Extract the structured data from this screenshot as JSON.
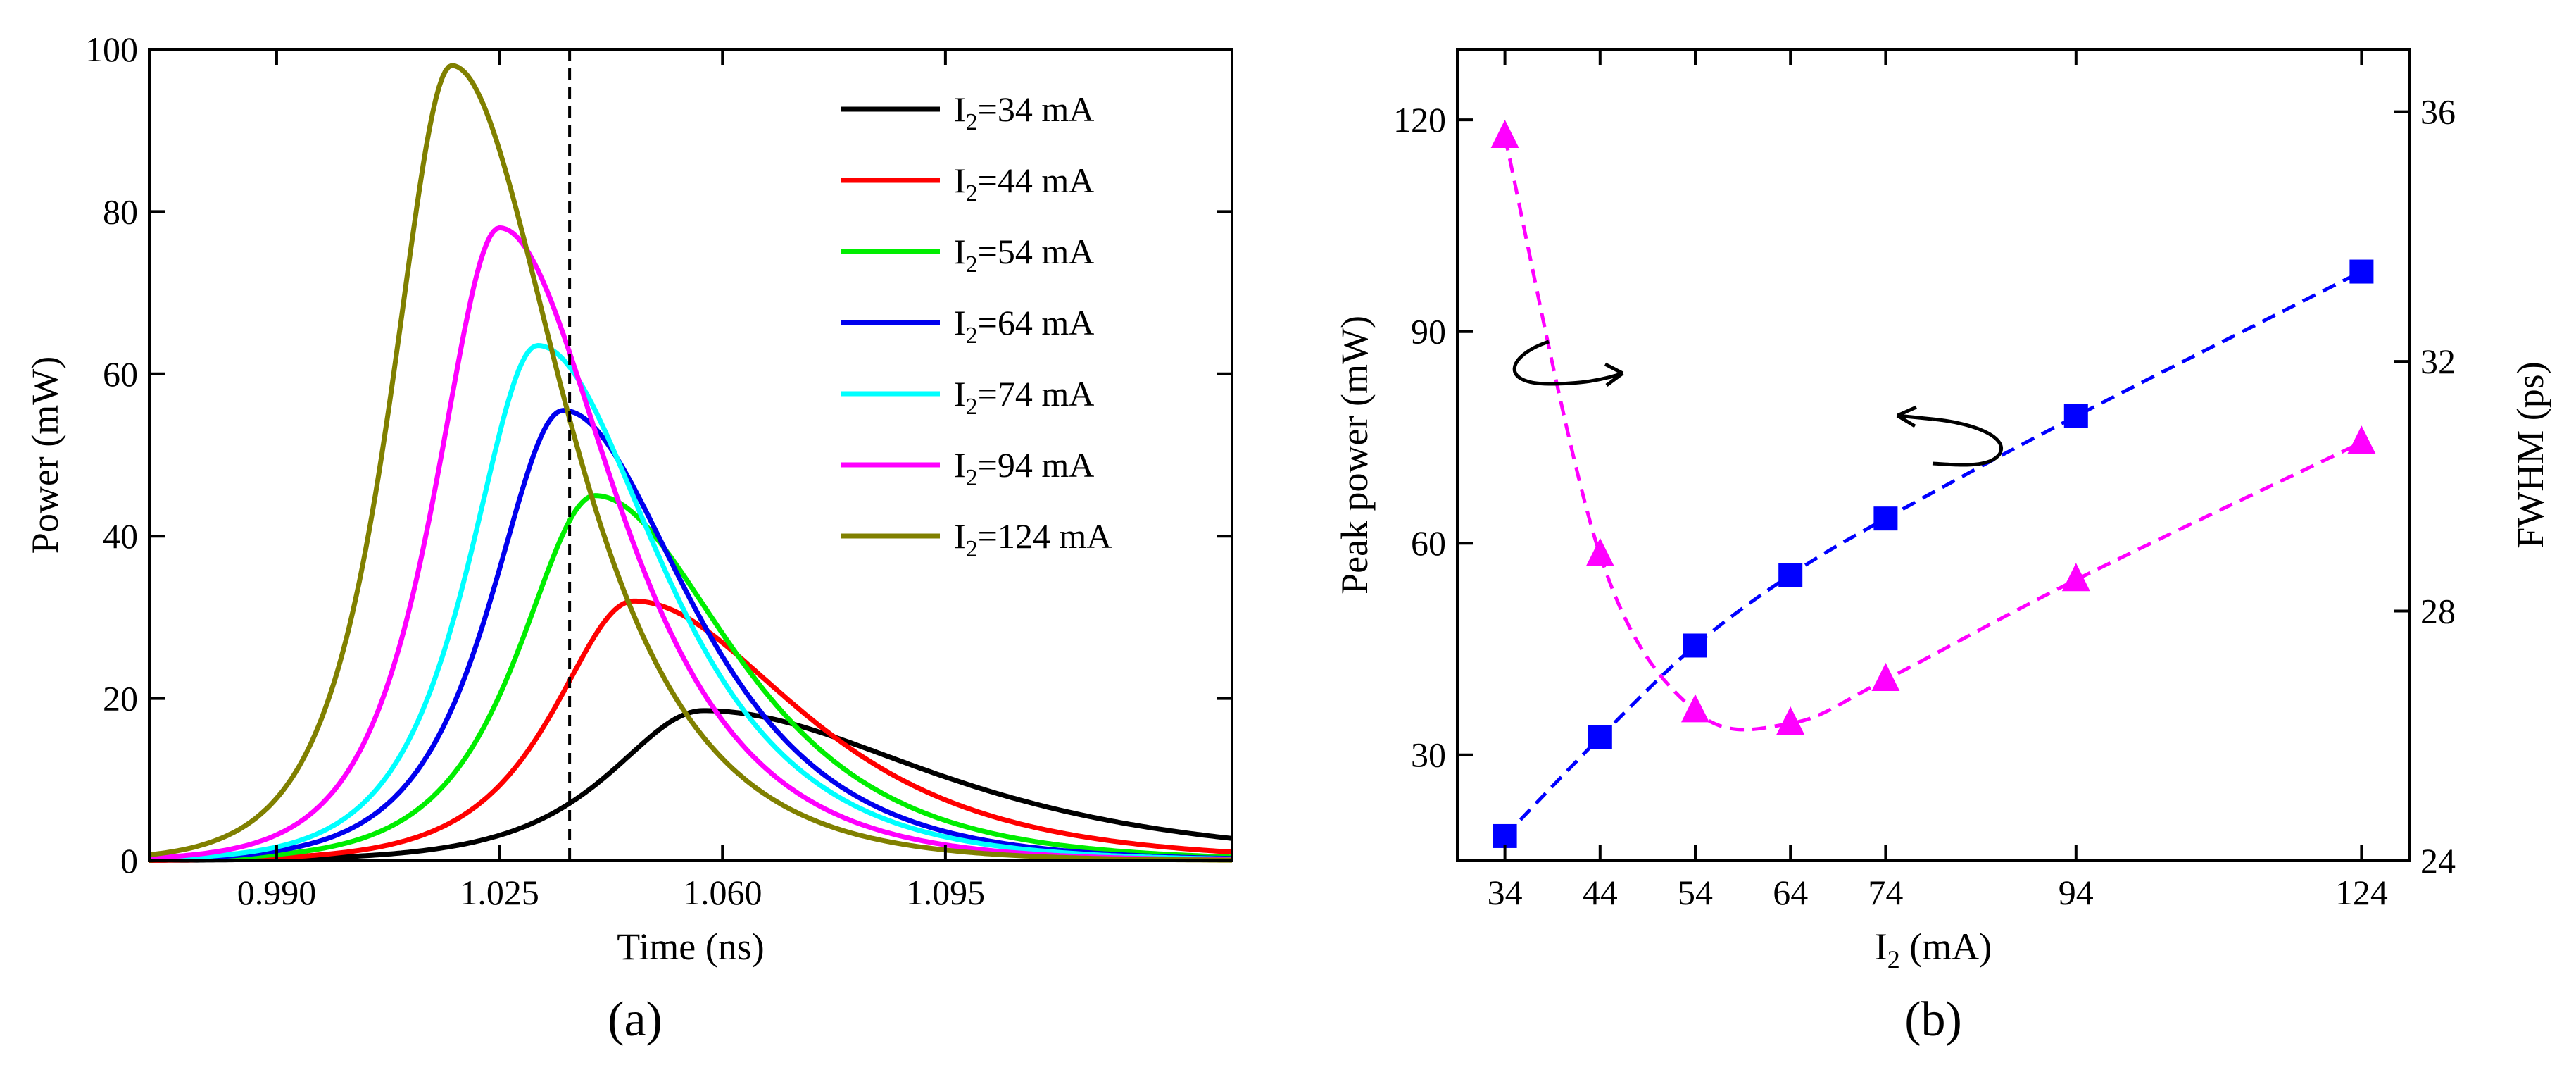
{
  "chart_data": [
    {
      "id": "a",
      "type": "line",
      "panel_label": "(a)",
      "xlabel": "Time (ns)",
      "ylabel": "Power (mW)",
      "xlim": [
        0.97,
        1.14
      ],
      "ylim": [
        0,
        100
      ],
      "xticks": [
        0.99,
        1.025,
        1.06,
        1.095
      ],
      "xtick_labels": [
        "0.990",
        "1.025",
        "1.060",
        "1.095"
      ],
      "yticks": [
        0,
        20,
        40,
        60,
        80,
        100
      ],
      "ytick_labels": [
        "0",
        "20",
        "40",
        "60",
        "80",
        "100"
      ],
      "vline_x": 1.036,
      "legend_position": "top-right",
      "series": [
        {
          "name": "I2=34 mA",
          "legend_base": "I",
          "legend_sub": "2",
          "legend_rest": "=34 mA",
          "color": "#000000",
          "peak": 18.5,
          "t_peak": 1.057,
          "rise": 0.013,
          "fall": 0.032
        },
        {
          "name": "I2=44 mA",
          "legend_base": "I",
          "legend_sub": "2",
          "legend_rest": "=44 mA",
          "color": "#ff0000",
          "peak": 32.0,
          "t_peak": 1.046,
          "rise": 0.011,
          "fall": 0.023
        },
        {
          "name": "I2=54 mA",
          "legend_base": "I",
          "legend_sub": "2",
          "legend_rest": "=54 mA",
          "color": "#00ee00",
          "peak": 45.0,
          "t_peak": 1.04,
          "rise": 0.0105,
          "fall": 0.019
        },
        {
          "name": "I2=64 mA",
          "legend_base": "I",
          "legend_sub": "2",
          "legend_rest": "=64 mA",
          "color": "#0000ee",
          "peak": 55.5,
          "t_peak": 1.035,
          "rise": 0.01,
          "fall": 0.0175
        },
        {
          "name": "I2=74 mA",
          "legend_base": "I",
          "legend_sub": "2",
          "legend_rest": "=74 mA",
          "color": "#00ffff",
          "peak": 63.5,
          "t_peak": 1.031,
          "rise": 0.0095,
          "fall": 0.017
        },
        {
          "name": "I2=94 mA",
          "legend_base": "I",
          "legend_sub": "2",
          "legend_rest": "=94 mA",
          "color": "#ff00ff",
          "peak": 78.0,
          "t_peak": 1.025,
          "rise": 0.009,
          "fall": 0.016
        },
        {
          "name": "I2=124 mA",
          "legend_base": "I",
          "legend_sub": "2",
          "legend_rest": "=124 mA",
          "color": "#808000",
          "peak": 98.0,
          "t_peak": 1.0175,
          "rise": 0.0085,
          "fall": 0.0155
        }
      ]
    },
    {
      "id": "b",
      "type": "scatter",
      "panel_label": "(b)",
      "xlabel_base": "I",
      "xlabel_sub": "2",
      "xlabel_rest": " (mA)",
      "ylabel_left": "Peak power (mW)",
      "ylabel_right": "FWHM (ps)",
      "xlim": [
        29,
        129
      ],
      "ylim_left": [
        15,
        130
      ],
      "ylim_right": [
        24,
        37
      ],
      "xticks": [
        34,
        44,
        54,
        64,
        74,
        94,
        124
      ],
      "xtick_labels": [
        "34",
        "44",
        "54",
        "64",
        "74",
        "94",
        "124"
      ],
      "yticks_left": [
        30,
        60,
        90,
        120
      ],
      "ytick_labels_left": [
        "30",
        "60",
        "90",
        "120"
      ],
      "yticks_right": [
        24,
        28,
        32,
        36
      ],
      "ytick_labels_right": [
        "24",
        "28",
        "32",
        "36"
      ],
      "series": [
        {
          "name": "Peak power",
          "axis": "left",
          "marker": "square",
          "color": "#0000ff",
          "x": [
            34,
            44,
            54,
            64,
            74,
            94,
            124
          ],
          "y": [
            18.5,
            32.5,
            45.5,
            55.5,
            63.5,
            78.0,
            98.5
          ]
        },
        {
          "name": "FWHM",
          "axis": "right",
          "marker": "triangle",
          "color": "#ff00ff",
          "x": [
            34,
            44,
            54,
            64,
            74,
            94,
            124
          ],
          "y": [
            35.6,
            28.9,
            26.4,
            26.2,
            26.9,
            28.5,
            30.7
          ]
        }
      ]
    }
  ]
}
